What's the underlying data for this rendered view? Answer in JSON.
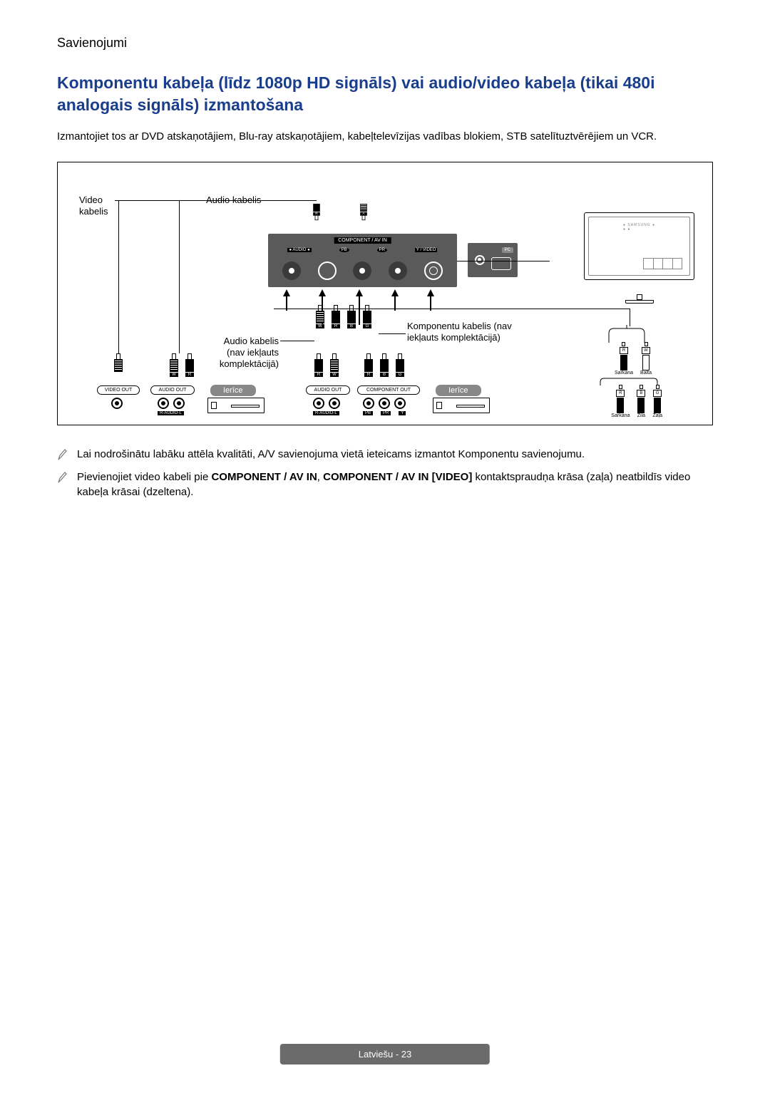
{
  "section_label": "Savienojumi",
  "heading": "Komponentu kabeļa (līdz 1080p HD signāls) vai audio/video kabeļa (tikai 480i analogais signāls) izmantošana",
  "intro": "Izmantojiet tos ar DVD atskaņotājiem, Blu-ray atskaņotājiem, kabeļtelevīzijas vadības blokiem, STB satelītuztvērējiem un VCR.",
  "diagram": {
    "video_cable": "Video\nkabelis",
    "audio_cable_top": "Audio kabelis",
    "audio_cable_not_incl": "Audio kabelis\n(nav iekļauts\nkomplektācijā)",
    "component_cable_not_incl": "Komponentu kabelis (nav\niekļauts komplektācijā)",
    "port_panel_label": "COMPONENT / AV IN",
    "port_sublabels": [
      "R AUDIO L",
      "PB",
      "PR",
      "Y / VIDEO"
    ],
    "pc_label": "PC",
    "device_label": "Ierīce",
    "video_out": "VIDEO OUT",
    "audio_out": "AUDIO OUT",
    "component_out": "COMPONENT OUT",
    "r_audio_l": "R-AUDIO-L",
    "pb": "PB",
    "pr": "PR",
    "y": "Y",
    "side_colors_top": [
      "Sarkana",
      "Balta"
    ],
    "side_letters_top": [
      "R",
      "W"
    ],
    "side_colors_bottom": [
      "Sarkana",
      "Zila",
      "Zaļa"
    ],
    "side_letters_bottom": [
      "R",
      "B",
      "G"
    ],
    "plug_w": "W",
    "plug_r": "R",
    "plug_b": "B",
    "plug_g": "G"
  },
  "notes": [
    {
      "text": "Lai nodrošinātu labāku attēla kvalitāti, A/V savienojuma vietā ieteicams izmantot Komponentu savienojumu."
    },
    {
      "pre": "Pievienojiet video kabeli pie ",
      "b1": "COMPONENT / AV IN",
      "mid1": ", ",
      "b2": "COMPONENT / AV IN [VIDEO]",
      "post": " kontaktspraudņa krāsa (zaļa) neatbildīs video kabeļa krāsai (dzeltena)."
    }
  ],
  "footer": "Latviešu - 23",
  "colors": {
    "heading": "#1a3e8c",
    "panel": "#5a5a5a",
    "pill": "#6b6b6b"
  }
}
